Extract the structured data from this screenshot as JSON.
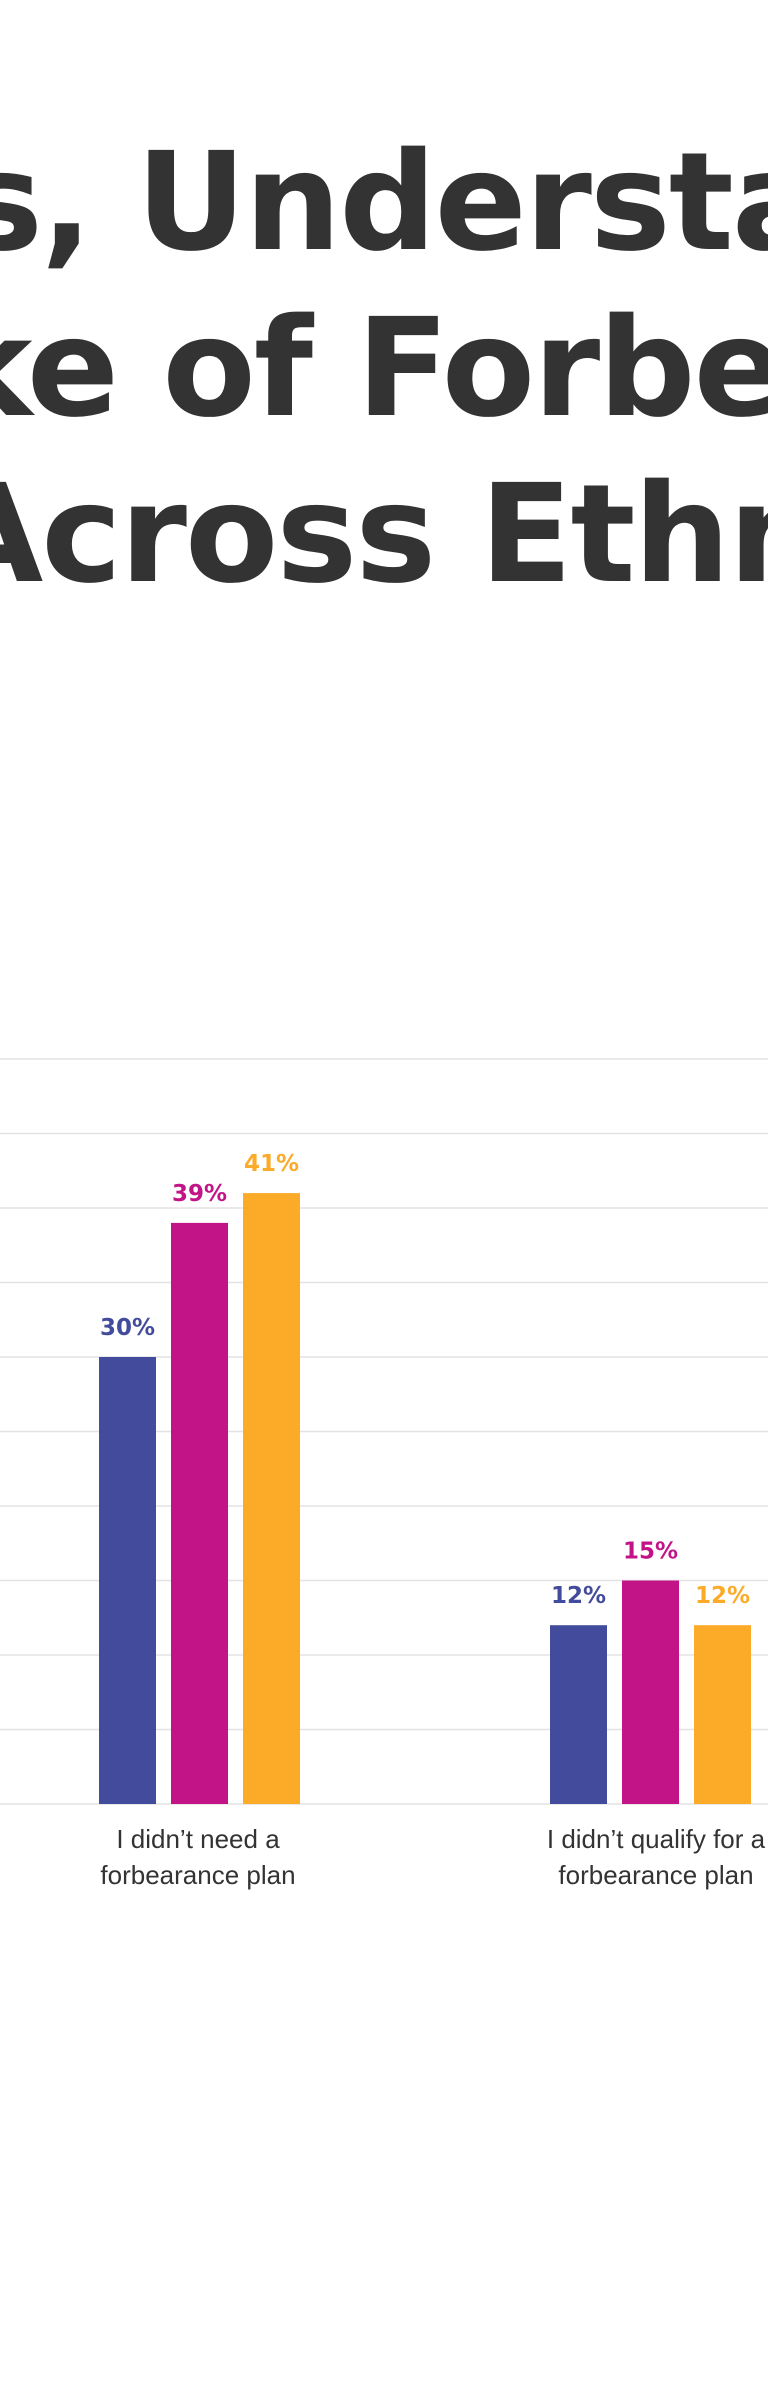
{
  "title_lines": [
    "s, Understan",
    "ke of Forbear",
    "Across Ethnic"
  ],
  "colors": {
    "series_1": "#434c9c",
    "series_2": "#c31487",
    "series_3": "#fbab28",
    "grid": "#e3e3e3",
    "text": "#333333"
  },
  "chart_data": {
    "type": "bar",
    "categories": [
      [
        "I didn’t need a",
        "forbearance plan"
      ],
      [
        "I didn’t qualify for a",
        "forbearance plan"
      ]
    ],
    "series": [
      {
        "color": "#434c9c",
        "values": [
          30,
          12
        ],
        "labels": [
          "30%",
          "12%"
        ]
      },
      {
        "color": "#c31487",
        "values": [
          39,
          15
        ],
        "labels": [
          "39%",
          "15%"
        ]
      },
      {
        "color": "#fbab28",
        "values": [
          41,
          12
        ],
        "labels": [
          "41%",
          "12%"
        ]
      }
    ],
    "ylim": [
      0,
      50
    ],
    "grid": true
  }
}
